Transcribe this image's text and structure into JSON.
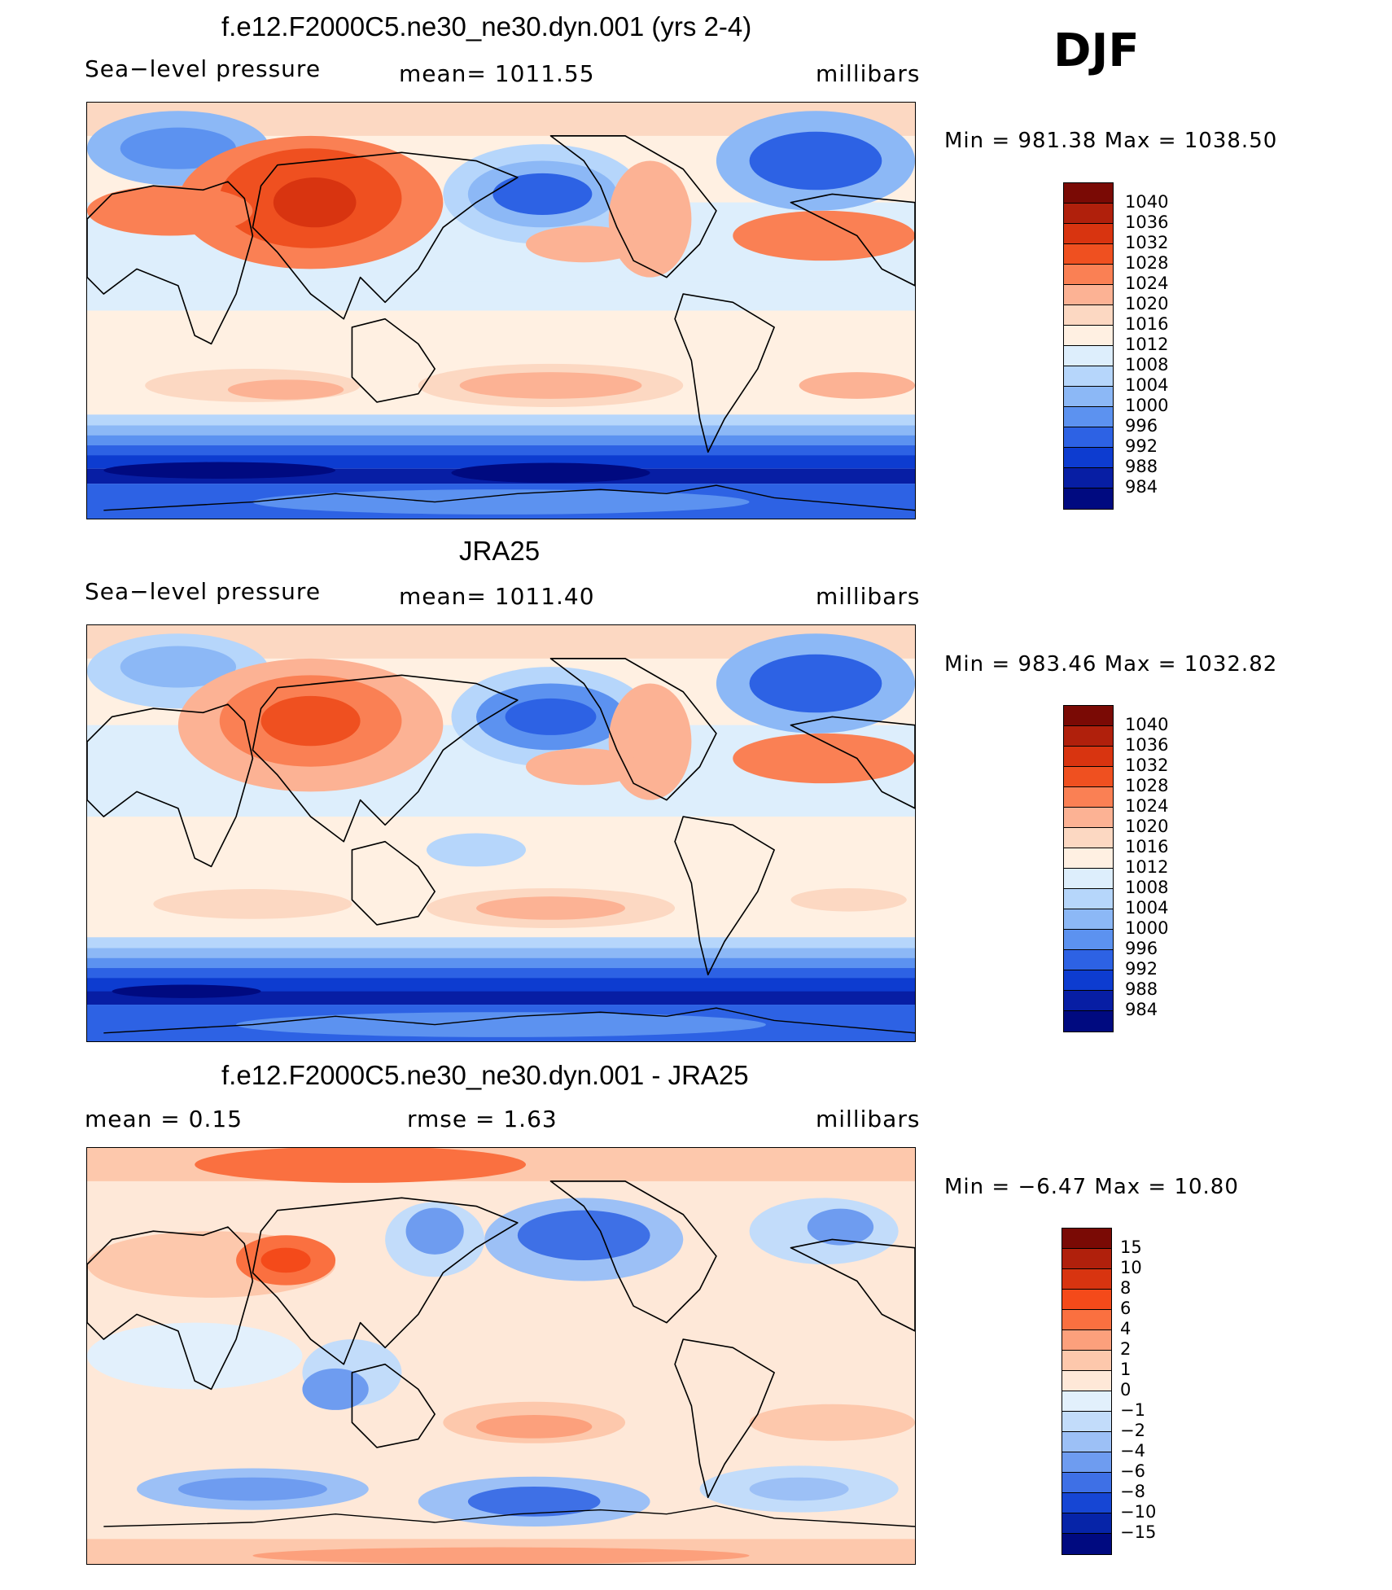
{
  "season": "DJF",
  "panels": [
    {
      "id": "model",
      "title": "f.e12.F2000C5.ne30_ne30.dyn.001 (yrs 2-4)",
      "left_label": "Sea−level pressure",
      "center_label": "mean=  1011.55",
      "right_label": "millibars",
      "minmax": "Min  =  981.38  Max  =  1038.50",
      "colorbar": {
        "levels": [
          "1040",
          "1036",
          "1032",
          "1028",
          "1024",
          "1020",
          "1016",
          "1012",
          "1008",
          "1004",
          "1000",
          "996",
          "992",
          "988",
          "984"
        ],
        "colors": [
          "#7a0a05",
          "#b0200c",
          "#d83410",
          "#ef5020",
          "#fa8054",
          "#fcb294",
          "#fcd8c2",
          "#fff0e2",
          "#ddeefc",
          "#b6d6fb",
          "#8cb8f6",
          "#5c92f0",
          "#2d62e4",
          "#0d3cd0",
          "#071ea4",
          "#000a80"
        ]
      }
    },
    {
      "id": "obs",
      "title": "JRA25",
      "left_label": "Sea−level pressure",
      "center_label": "mean=  1011.40",
      "right_label": "millibars",
      "minmax": "Min  =  983.46  Max  =  1032.82",
      "colorbar": {
        "levels": [
          "1040",
          "1036",
          "1032",
          "1028",
          "1024",
          "1020",
          "1016",
          "1012",
          "1008",
          "1004",
          "1000",
          "996",
          "992",
          "988",
          "984"
        ],
        "colors": [
          "#7a0a05",
          "#b0200c",
          "#d83410",
          "#ef5020",
          "#fa8054",
          "#fcb294",
          "#fcd8c2",
          "#fff0e2",
          "#ddeefc",
          "#b6d6fb",
          "#8cb8f6",
          "#5c92f0",
          "#2d62e4",
          "#0d3cd0",
          "#071ea4",
          "#000a80"
        ]
      }
    },
    {
      "id": "diff",
      "title": "f.e12.F2000C5.ne30_ne30.dyn.001 - JRA25",
      "left_label": "mean  =      0.15",
      "center_label": "rmse  =      1.63",
      "right_label": "millibars",
      "minmax": "Min  =    −6.47  Max  =     10.80",
      "colorbar": {
        "levels": [
          "15",
          "10",
          "8",
          "6",
          "4",
          "2",
          "1",
          "0",
          "−1",
          "−2",
          "−4",
          "−6",
          "−8",
          "−10",
          "−15"
        ],
        "colors": [
          "#7a0a05",
          "#b0200c",
          "#d83410",
          "#f44a1a",
          "#fa7040",
          "#fca07c",
          "#fdc8ac",
          "#fee8d8",
          "#e2f0fc",
          "#c2dcfa",
          "#9cc0f6",
          "#6e9cf0",
          "#3e70e6",
          "#1646d4",
          "#0624a8",
          "#000a80"
        ]
      }
    }
  ]
}
